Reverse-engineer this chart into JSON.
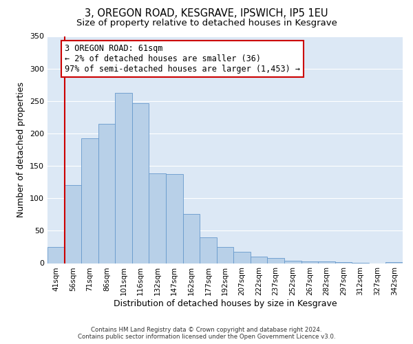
{
  "title": "3, OREGON ROAD, KESGRAVE, IPSWICH, IP5 1EU",
  "subtitle": "Size of property relative to detached houses in Kesgrave",
  "xlabel": "Distribution of detached houses by size in Kesgrave",
  "ylabel": "Number of detached properties",
  "bar_labels": [
    "41sqm",
    "56sqm",
    "71sqm",
    "86sqm",
    "101sqm",
    "116sqm",
    "132sqm",
    "147sqm",
    "162sqm",
    "177sqm",
    "192sqm",
    "207sqm",
    "222sqm",
    "237sqm",
    "252sqm",
    "267sqm",
    "282sqm",
    "297sqm",
    "312sqm",
    "327sqm",
    "342sqm"
  ],
  "bar_values": [
    25,
    120,
    192,
    215,
    262,
    247,
    138,
    137,
    76,
    40,
    25,
    17,
    10,
    8,
    4,
    3,
    3,
    2,
    1,
    0,
    2
  ],
  "bar_color": "#b8d0e8",
  "bar_edge_color": "#6699cc",
  "vline_x_idx": 1,
  "vline_color": "#cc0000",
  "annotation_text": "3 OREGON ROAD: 61sqm\n← 2% of detached houses are smaller (36)\n97% of semi-detached houses are larger (1,453) →",
  "annotation_box_color": "#ffffff",
  "annotation_box_edge_color": "#cc0000",
  "ylim": [
    0,
    350
  ],
  "yticks": [
    0,
    50,
    100,
    150,
    200,
    250,
    300,
    350
  ],
  "background_color": "#dce8f5",
  "plot_bg_color": "#dce8f5",
  "footer_line1": "Contains HM Land Registry data © Crown copyright and database right 2024.",
  "footer_line2": "Contains public sector information licensed under the Open Government Licence v3.0.",
  "title_fontsize": 10.5,
  "subtitle_fontsize": 9.5,
  "annotation_fontsize": 8.5
}
